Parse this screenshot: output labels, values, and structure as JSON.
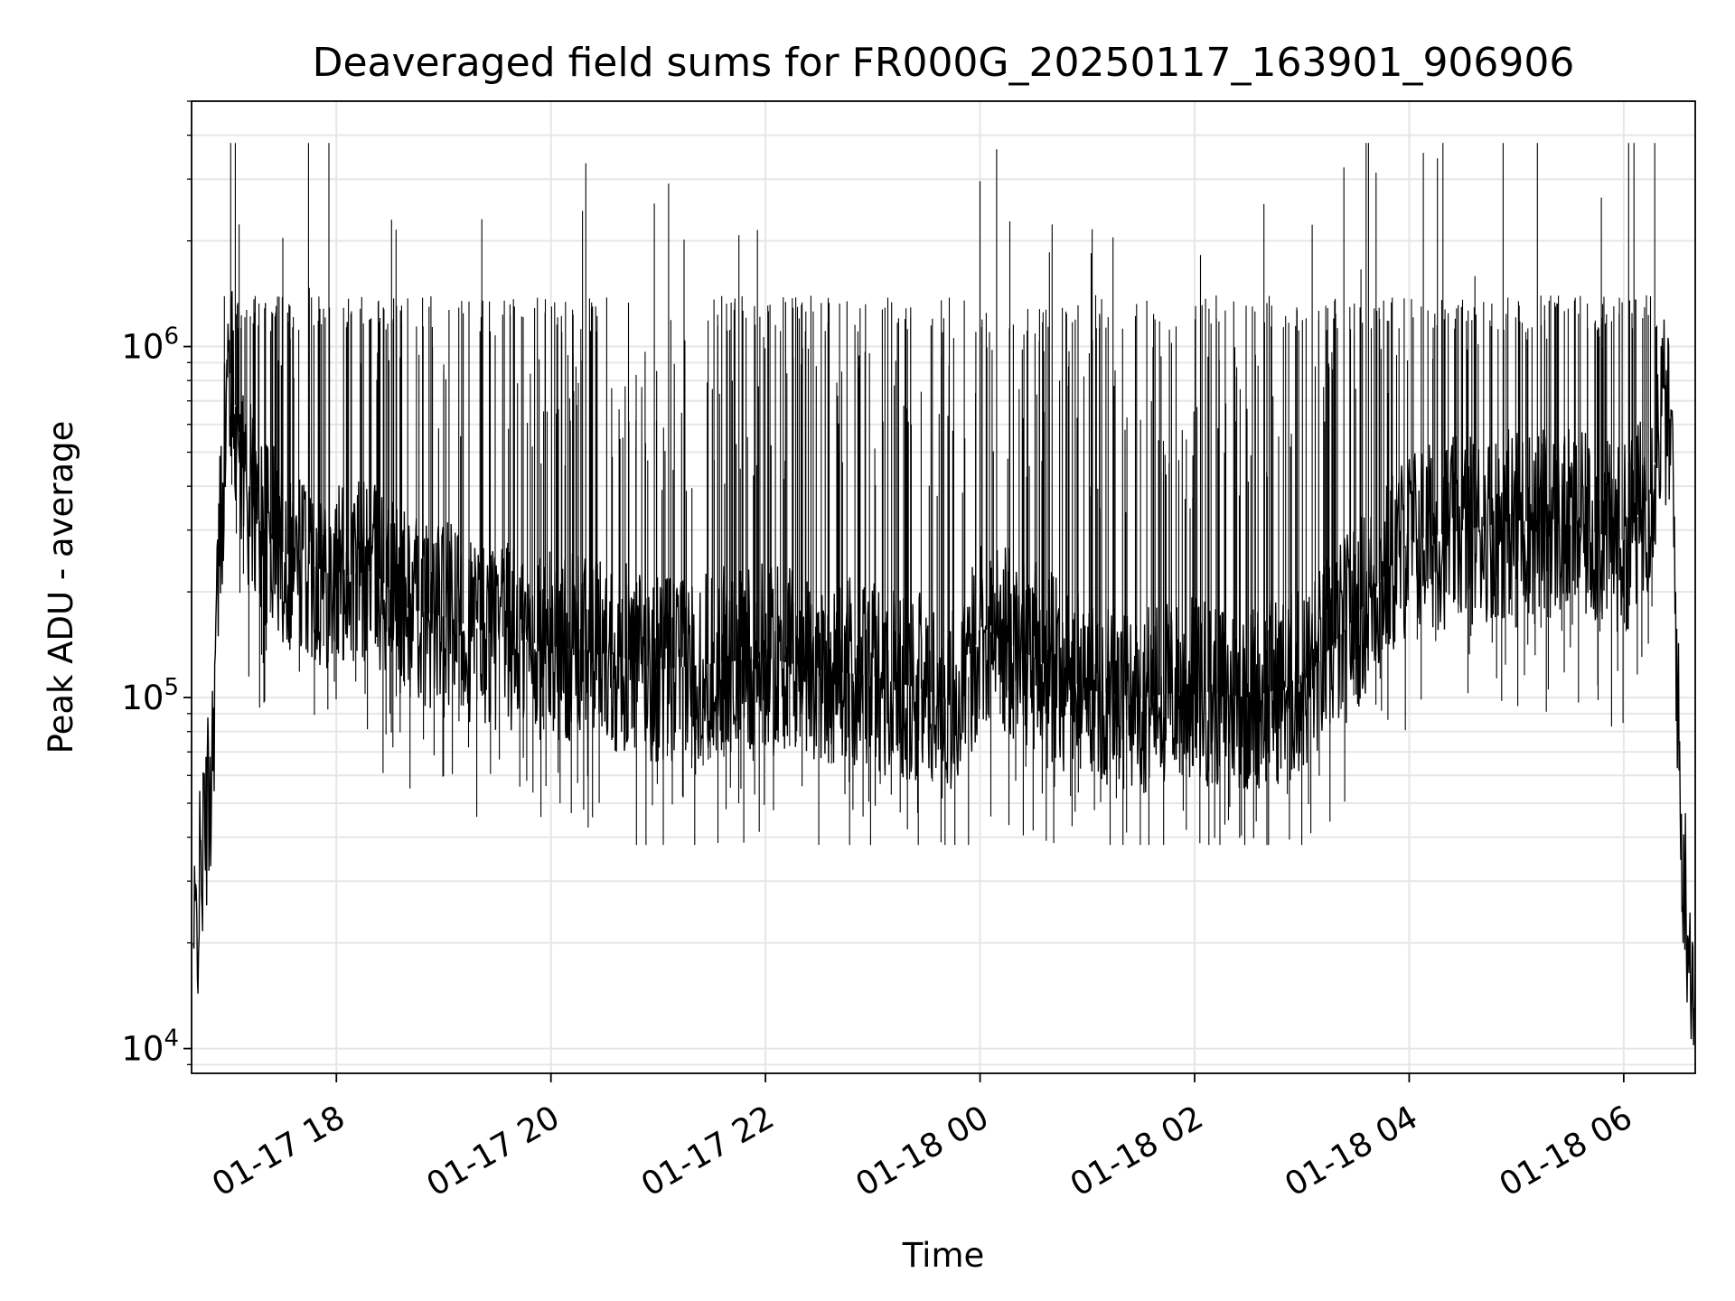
{
  "chart_data": {
    "type": "line",
    "title": "Deaveraged field sums for FR000G_20250117_163901_906906",
    "xlabel": "Time",
    "ylabel": "Peak ADU - average",
    "y_scale": "log",
    "ylim": [
      8500,
      5000000
    ],
    "xlim": [
      "2025-01-17 16:39",
      "2025-01-18 06:40"
    ],
    "grid": true,
    "line_color": "#000000",
    "grid_color": "#e6e6e6",
    "x_ticks": [
      {
        "value": "2025-01-17 18:00",
        "label": "01-17 18"
      },
      {
        "value": "2025-01-17 20:00",
        "label": "01-17 20"
      },
      {
        "value": "2025-01-17 22:00",
        "label": "01-17 22"
      },
      {
        "value": "2025-01-18 00:00",
        "label": "01-18 00"
      },
      {
        "value": "2025-01-18 02:00",
        "label": "01-18 02"
      },
      {
        "value": "2025-01-18 04:00",
        "label": "01-18 04"
      },
      {
        "value": "2025-01-18 06:00",
        "label": "01-18 06"
      }
    ],
    "y_ticks": [
      {
        "value": 10000,
        "base": "10",
        "exp": "4"
      },
      {
        "value": 100000,
        "base": "10",
        "exp": "5"
      },
      {
        "value": 1000000,
        "base": "10",
        "exp": "6"
      }
    ],
    "series": [
      {
        "name": "",
        "x": [
          "2025-01-17 16:40",
          "2025-01-17 16:45",
          "2025-01-17 16:50",
          "2025-01-17 16:55",
          "2025-01-17 17:00",
          "2025-01-17 17:05",
          "2025-01-17 17:10",
          "2025-01-17 17:15",
          "2025-01-17 17:20",
          "2025-01-17 17:30",
          "2025-01-17 17:45",
          "2025-01-17 18:00",
          "2025-01-17 18:20",
          "2025-01-17 18:40",
          "2025-01-17 19:00",
          "2025-01-17 19:30",
          "2025-01-17 20:00",
          "2025-01-17 20:30",
          "2025-01-17 21:00",
          "2025-01-17 21:30",
          "2025-01-17 22:00",
          "2025-01-17 22:30",
          "2025-01-17 23:00",
          "2025-01-17 23:30",
          "2025-01-17 23:50",
          "2025-01-18 00:00",
          "2025-01-18 00:30",
          "2025-01-18 01:00",
          "2025-01-18 01:30",
          "2025-01-18 02:00",
          "2025-01-18 02:30",
          "2025-01-18 03:00",
          "2025-01-18 03:30",
          "2025-01-18 04:00",
          "2025-01-18 04:30",
          "2025-01-18 05:00",
          "2025-01-18 05:30",
          "2025-01-18 06:00",
          "2025-01-18 06:15",
          "2025-01-18 06:22",
          "2025-01-18 06:27",
          "2025-01-18 06:32",
          "2025-01-18 06:37",
          "2025-01-18 06:40"
        ],
        "y": [
          18000,
          35000,
          60000,
          300000,
          900000,
          600000,
          400000,
          330000,
          300000,
          260000,
          240000,
          220000,
          230000,
          180000,
          170000,
          150000,
          140000,
          135000,
          120000,
          125000,
          130000,
          120000,
          115000,
          105000,
          95000,
          160000,
          130000,
          105000,
          100000,
          105000,
          100000,
          110000,
          170000,
          280000,
          300000,
          320000,
          310000,
          280000,
          380000,
          700000,
          500000,
          40000,
          20000,
          14000
        ],
        "spike_max": 3800000,
        "spike_min": 38000
      }
    ]
  }
}
